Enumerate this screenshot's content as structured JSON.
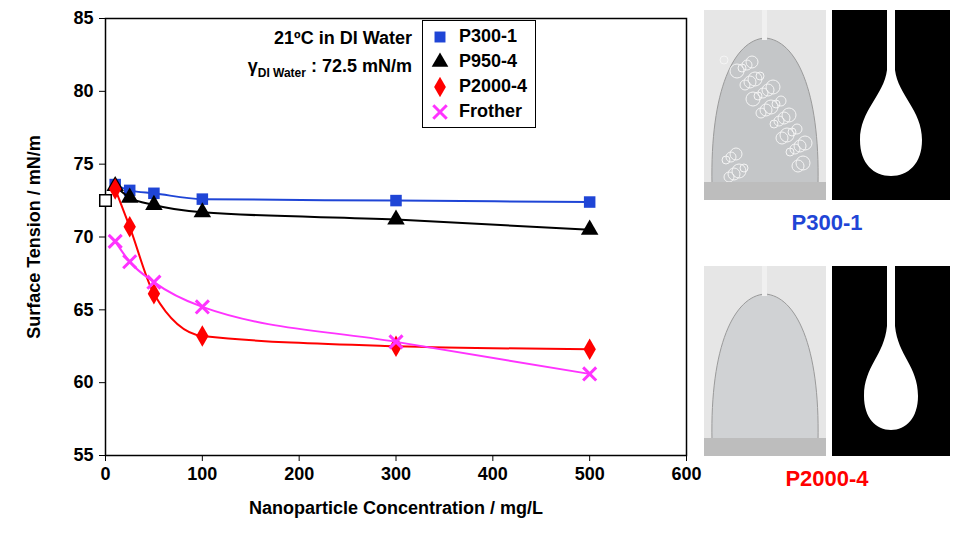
{
  "chart_data": {
    "type": "line",
    "x_label": "Nanoparticle Concentration / mg/L",
    "y_label": "Surface Tension / mN/m",
    "annotations": [
      {
        "text": "21ºC in DI Water"
      },
      {
        "text": "γ",
        "subscript": "DI Water",
        "suffix": " : 72.5 mN/m"
      }
    ],
    "x": [
      10,
      25,
      50,
      100,
      300,
      500
    ],
    "series": [
      {
        "name": "P300-1",
        "color": "#1f45d6",
        "marker": "square",
        "values": [
          73.6,
          73.2,
          73.0,
          72.6,
          72.5,
          72.4
        ]
      },
      {
        "name": "P950-4",
        "color": "#000000",
        "marker": "triangle",
        "values": [
          73.5,
          72.7,
          72.2,
          71.7,
          71.2,
          70.5
        ]
      },
      {
        "name": "P2000-4",
        "color": "#ff0000",
        "marker": "diamond",
        "values": [
          73.3,
          70.7,
          66.1,
          63.2,
          62.5,
          62.3
        ]
      },
      {
        "name": "Frother",
        "color": "#ff33ff",
        "marker": "x",
        "values": [
          69.7,
          68.3,
          66.9,
          65.2,
          62.8,
          60.6
        ]
      }
    ],
    "reference": {
      "x": 0,
      "y": 72.5,
      "marker": "open-square",
      "color": "#000000"
    },
    "xlim": [
      0,
      600
    ],
    "xticks": [
      0,
      100,
      200,
      300,
      400,
      500,
      600
    ],
    "ylim": [
      55,
      85
    ],
    "yticks": [
      55,
      60,
      65,
      70,
      75,
      80,
      85
    ],
    "grid": false,
    "legend": "top-right",
    "line_style": "solid"
  },
  "images": [
    {
      "label": "P300-1",
      "color": "#1f45d6"
    },
    {
      "label": "P2000-4",
      "color": "#ff0000"
    }
  ]
}
